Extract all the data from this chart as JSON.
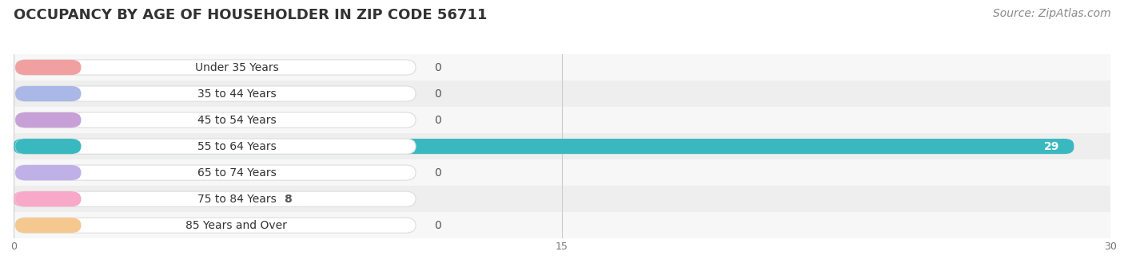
{
  "title": "OCCUPANCY BY AGE OF HOUSEHOLDER IN ZIP CODE 56711",
  "source": "Source: ZipAtlas.com",
  "categories": [
    "Under 35 Years",
    "35 to 44 Years",
    "45 to 54 Years",
    "55 to 64 Years",
    "65 to 74 Years",
    "75 to 84 Years",
    "85 Years and Over"
  ],
  "values": [
    0,
    0,
    0,
    29,
    0,
    8,
    0
  ],
  "bar_colors": [
    "#f0a0a0",
    "#aab8e8",
    "#c8a0d8",
    "#3ab8c0",
    "#c0b0e8",
    "#f8a8c8",
    "#f5c890"
  ],
  "label_colors": [
    "#555555",
    "#555555",
    "#555555",
    "#ffffff",
    "#555555",
    "#555555",
    "#555555"
  ],
  "background_color": "#ffffff",
  "xlim": [
    0,
    30
  ],
  "xticks": [
    0,
    15,
    30
  ],
  "title_fontsize": 13,
  "source_fontsize": 10,
  "bar_height": 0.58,
  "label_fontsize": 10,
  "ylabel_fontsize": 10,
  "row_colors": [
    "#f8f8f8",
    "#f0f0f0"
  ]
}
